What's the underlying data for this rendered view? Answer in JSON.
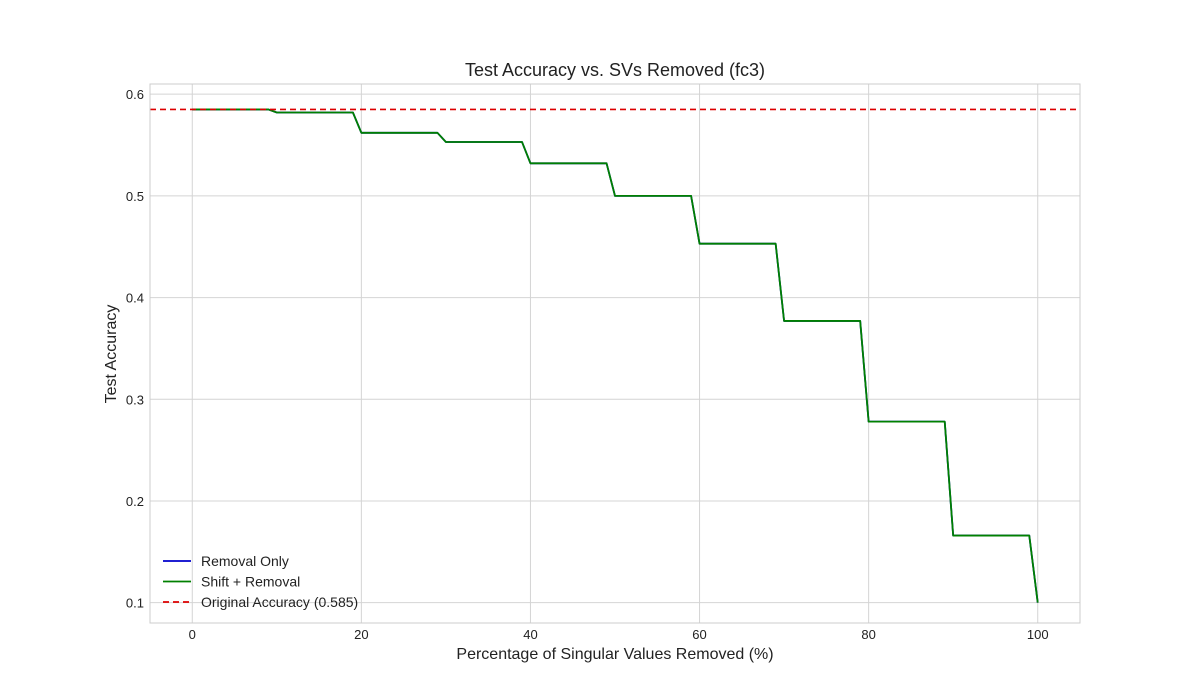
{
  "chart_data": {
    "type": "line",
    "title": "Test Accuracy vs. SVs Removed (fc3)",
    "xlabel": "Percentage of Singular Values Removed (%)",
    "ylabel": "Test Accuracy",
    "xlim": [
      -5,
      105
    ],
    "ylim": [
      0.08,
      0.61
    ],
    "xticks": [
      0,
      20,
      40,
      60,
      80,
      100
    ],
    "xtick_labels": [
      "0",
      "20",
      "40",
      "60",
      "80",
      "100"
    ],
    "yticks": [
      0.1,
      0.2,
      0.3,
      0.4,
      0.5,
      0.6
    ],
    "ytick_labels": [
      "0.1",
      "0.2",
      "0.3",
      "0.4",
      "0.5",
      "0.6"
    ],
    "grid": true,
    "legend_position": "lower-left",
    "x": [
      0,
      9,
      10,
      19,
      20,
      29,
      30,
      39,
      40,
      49,
      50,
      59,
      60,
      69,
      70,
      79,
      80,
      89,
      90,
      99,
      100
    ],
    "series": [
      {
        "name": "Removal Only",
        "color": "#0000cc",
        "style": "solid",
        "values": [
          0.585,
          0.585,
          0.582,
          0.582,
          0.562,
          0.562,
          0.553,
          0.553,
          0.532,
          0.532,
          0.5,
          0.5,
          0.453,
          0.453,
          0.377,
          0.377,
          0.278,
          0.278,
          0.166,
          0.166,
          0.1
        ]
      },
      {
        "name": "Shift + Removal",
        "color": "#008000",
        "style": "solid",
        "values": [
          0.585,
          0.585,
          0.582,
          0.582,
          0.562,
          0.562,
          0.553,
          0.553,
          0.532,
          0.532,
          0.5,
          0.5,
          0.453,
          0.453,
          0.377,
          0.377,
          0.278,
          0.278,
          0.166,
          0.166,
          0.1
        ]
      }
    ],
    "reference_line": {
      "name": "Original Accuracy (0.585)",
      "y": 0.585,
      "color": "#dd0000",
      "style": "dashed"
    }
  }
}
